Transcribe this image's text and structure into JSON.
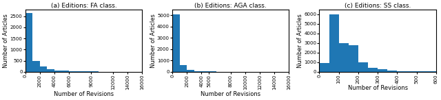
{
  "chart_data": [
    {
      "type": "histogram",
      "title": "(a) Editions: FA class.",
      "xlabel": "Number of Revisions",
      "ylabel": "Number of Articles",
      "xlim": [
        0,
        16000
      ],
      "ylim": [
        0,
        2800
      ],
      "xticks": [
        0,
        2000,
        4000,
        6000,
        9000,
        12000,
        14000,
        16000
      ],
      "yticks": [
        0,
        500,
        1000,
        1500,
        2000,
        2500
      ],
      "bins": [
        0,
        1000,
        2000,
        3000,
        4000,
        5000,
        6000,
        7000,
        8000,
        9000,
        10000,
        11000,
        12000,
        13000,
        14000,
        15000
      ],
      "values": [
        2650,
        500,
        250,
        130,
        70,
        40,
        25,
        20,
        15,
        10,
        8,
        6,
        5,
        4,
        3
      ]
    },
    {
      "type": "histogram",
      "title": "(b) Editions: AGA class.",
      "xlabel": "Number of Revisions",
      "ylabel": "Number of Articles",
      "xlim": [
        0,
        16000
      ],
      "ylim": [
        0,
        5500
      ],
      "xticks": [
        0,
        2000,
        4000,
        5000,
        8000,
        10000,
        12000,
        14000,
        16000
      ],
      "yticks": [
        0,
        1000,
        2000,
        3000,
        4000,
        5000
      ],
      "bins": [
        0,
        1000,
        2000,
        3000,
        4000,
        5000,
        6000,
        7000,
        8000,
        9000,
        10000,
        11000,
        12000,
        13000,
        14000,
        15000
      ],
      "values": [
        5100,
        600,
        180,
        70,
        35,
        18,
        10,
        7,
        5,
        3,
        2,
        2,
        1,
        1,
        1
      ]
    },
    {
      "type": "histogram",
      "title": "(c) Editions: SS class.",
      "xlabel": "Number of Revisions",
      "ylabel": "Number of Articles",
      "xlim": [
        0,
        600
      ],
      "ylim": [
        0,
        6500
      ],
      "xticks": [
        0,
        100,
        200,
        300,
        400,
        500,
        600
      ],
      "yticks": [
        0,
        1000,
        2000,
        3000,
        4000,
        5000,
        6000
      ],
      "bins": [
        0,
        50,
        100,
        150,
        200,
        250,
        300,
        350,
        400,
        450,
        500,
        600
      ],
      "values": [
        900,
        6000,
        3000,
        2800,
        1000,
        400,
        250,
        150,
        80,
        40,
        20
      ]
    }
  ]
}
